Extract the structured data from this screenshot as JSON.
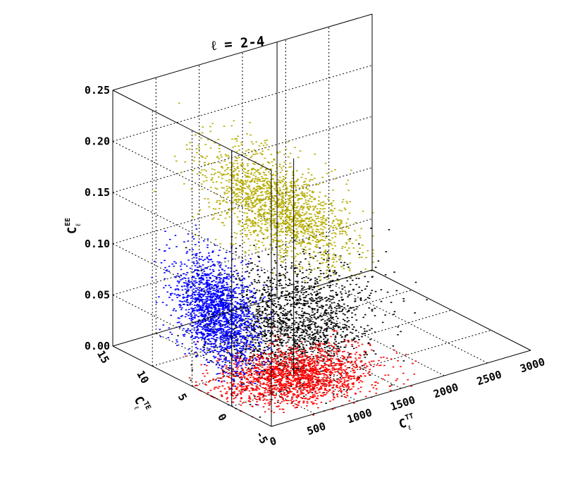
{
  "chart_data": {
    "type": "scatter",
    "projection": "3d",
    "title": "ℓ = 2-4",
    "xlabel": "C_ℓ^TT",
    "ylabel": "C_ℓ^TE",
    "zlabel": "C_ℓ^EE",
    "xlim": [
      0,
      3000
    ],
    "ylim": [
      -5,
      15
    ],
    "zlim": [
      0.0,
      0.25
    ],
    "x_ticks": [
      "0",
      "500",
      "1000",
      "1500",
      "2000",
      "2500",
      "3000"
    ],
    "y_ticks": [
      "-5",
      "0",
      "5",
      "10",
      "15"
    ],
    "z_ticks": [
      "0.00",
      "0.05",
      "0.10",
      "0.15",
      "0.20",
      "0.25"
    ],
    "grid": true,
    "series": [
      {
        "role": "3d-samples",
        "color": "#000000",
        "distribution": {
          "x_mean": 900,
          "x_sd": 380,
          "y_mean": 2,
          "y_sd": 2.6,
          "z_mean": 0.05,
          "z_sd": 0.03,
          "z_min": 0.0
        }
      },
      {
        "role": "projection-TT-TE",
        "color": "#ff0000",
        "distribution": {
          "x_mean": 900,
          "x_sd": 380,
          "y_mean": 2,
          "y_sd": 2.6,
          "z_fixed": 0.0
        }
      },
      {
        "role": "projection-TE-EE",
        "color": "#0000ff",
        "distribution": {
          "y_mean": 2,
          "y_sd": 2.6,
          "z_mean": 0.085,
          "z_sd": 0.025,
          "x_fixed": 0
        }
      },
      {
        "role": "projection-TT-EE",
        "color": "#b5ac00",
        "distribution": {
          "x_mean": 1900,
          "x_sd": 420,
          "z_mean": 0.09,
          "z_sd": 0.035,
          "y_fixed": 15
        }
      }
    ]
  }
}
